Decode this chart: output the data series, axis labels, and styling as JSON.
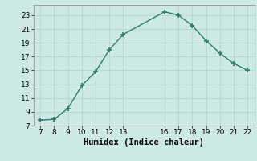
{
  "x": [
    7,
    8,
    9,
    10,
    11,
    12,
    13,
    16,
    17,
    18,
    19,
    20,
    21,
    22
  ],
  "y": [
    7.8,
    7.9,
    9.5,
    12.8,
    14.8,
    18.0,
    20.2,
    23.5,
    23.0,
    21.5,
    19.3,
    17.5,
    16.0,
    15.0
  ],
  "xlim": [
    6.5,
    22.5
  ],
  "ylim": [
    7,
    24.5
  ],
  "xticks": [
    7,
    8,
    9,
    10,
    11,
    12,
    13,
    16,
    17,
    18,
    19,
    20,
    21,
    22
  ],
  "yticks": [
    7,
    9,
    11,
    13,
    15,
    17,
    19,
    21,
    23
  ],
  "xlabel": "Humidex (Indice chaleur)",
  "line_color": "#2e7d6e",
  "marker_color": "#2e7d6e",
  "bg_color": "#cce9e4",
  "grid_color": "#b8d4cf",
  "tick_label_fontsize": 6.5,
  "xlabel_fontsize": 7.5
}
